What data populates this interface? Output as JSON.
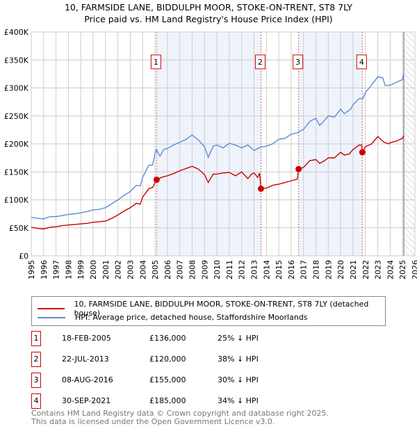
{
  "chart_data": {
    "type": "line",
    "title": "10, FARMSIDE LANE, BIDDULPH MOOR, STOKE-ON-TRENT, ST8 7LY",
    "subtitle": "Price paid vs. HM Land Registry's House Price Index (HPI)",
    "xlim": [
      1995,
      2026
    ],
    "ylim": [
      0,
      400000
    ],
    "x_ticks": [
      "1995",
      "1996",
      "1997",
      "1998",
      "1999",
      "2000",
      "2001",
      "2002",
      "2003",
      "2004",
      "2005",
      "2006",
      "2007",
      "2008",
      "2009",
      "2010",
      "2011",
      "2012",
      "2013",
      "2014",
      "2015",
      "2016",
      "2017",
      "2018",
      "2019",
      "2020",
      "2021",
      "2022",
      "2023",
      "2024",
      "2025",
      "2026"
    ],
    "y_ticks": [
      {
        "v": 0,
        "l": "£0"
      },
      {
        "v": 50000,
        "l": "£50K"
      },
      {
        "v": 100000,
        "l": "£100K"
      },
      {
        "v": 150000,
        "l": "£150K"
      },
      {
        "v": 200000,
        "l": "£200K"
      },
      {
        "v": 250000,
        "l": "£250K"
      },
      {
        "v": 300000,
        "l": "£300K"
      },
      {
        "v": 350000,
        "l": "£350K"
      },
      {
        "v": 400000,
        "l": "£400K"
      }
    ],
    "grid": true,
    "forecast_start": 2025.1,
    "series": [
      {
        "name": "10, FARMSIDE LANE, BIDDULPH MOOR, STOKE-ON-TRENT, ST8 7LY (detached house)",
        "color": "#cc0000",
        "points": [
          [
            1995,
            51
          ],
          [
            1995.5,
            49
          ],
          [
            1996,
            48
          ],
          [
            1996.5,
            51
          ],
          [
            1997,
            52
          ],
          [
            1997.5,
            54
          ],
          [
            1998,
            55
          ],
          [
            1998.5,
            56
          ],
          [
            1999,
            57
          ],
          [
            1999.5,
            58
          ],
          [
            2000,
            60
          ],
          [
            2000.5,
            61
          ],
          [
            2001,
            62
          ],
          [
            2001.5,
            67
          ],
          [
            2002,
            73
          ],
          [
            2002.5,
            80
          ],
          [
            2003,
            86
          ],
          [
            2003.5,
            94
          ],
          [
            2003.8,
            92
          ],
          [
            2004,
            105
          ],
          [
            2004.5,
            120
          ],
          [
            2004.8,
            122
          ],
          [
            2005.13,
            136
          ],
          [
            2005.5,
            140
          ],
          [
            2006,
            143
          ],
          [
            2006.5,
            147
          ],
          [
            2007,
            152
          ],
          [
            2007.5,
            156
          ],
          [
            2008,
            160
          ],
          [
            2008.5,
            155
          ],
          [
            2009,
            145
          ],
          [
            2009.3,
            131
          ],
          [
            2009.7,
            146
          ],
          [
            2010,
            146
          ],
          [
            2010.5,
            148
          ],
          [
            2011,
            149
          ],
          [
            2011.5,
            143
          ],
          [
            2012,
            150
          ],
          [
            2012.5,
            138
          ],
          [
            2012.8,
            146
          ],
          [
            2013,
            148
          ],
          [
            2013.3,
            140
          ],
          [
            2013.45,
            148
          ],
          [
            2013.56,
            120
          ],
          [
            2014,
            121
          ],
          [
            2014.5,
            126
          ],
          [
            2015,
            128
          ],
          [
            2015.5,
            131
          ],
          [
            2016,
            134
          ],
          [
            2016.5,
            137
          ],
          [
            2016.6,
            155
          ],
          [
            2017,
            158
          ],
          [
            2017.5,
            170
          ],
          [
            2018,
            172
          ],
          [
            2018.3,
            165
          ],
          [
            2018.7,
            170
          ],
          [
            2019,
            175
          ],
          [
            2019.5,
            175
          ],
          [
            2020,
            185
          ],
          [
            2020.3,
            180
          ],
          [
            2020.7,
            182
          ],
          [
            2021,
            190
          ],
          [
            2021.5,
            198
          ],
          [
            2021.7,
            198
          ],
          [
            2021.75,
            185
          ],
          [
            2022,
            195
          ],
          [
            2022.5,
            200
          ],
          [
            2023,
            213
          ],
          [
            2023.5,
            203
          ],
          [
            2023.9,
            200
          ],
          [
            2024,
            202
          ],
          [
            2024.5,
            205
          ],
          [
            2025,
            210
          ],
          [
            2025.1,
            215
          ]
        ]
      },
      {
        "name": "HPI: Average price, detached house, Staffordshire Moorlands",
        "color": "#5b8dd0",
        "points": [
          [
            1995,
            69
          ],
          [
            1995.5,
            67
          ],
          [
            1996,
            66
          ],
          [
            1996.5,
            70
          ],
          [
            1997,
            70
          ],
          [
            1997.5,
            72
          ],
          [
            1998,
            74
          ],
          [
            1998.5,
            75
          ],
          [
            1999,
            77
          ],
          [
            1999.5,
            79
          ],
          [
            2000,
            82
          ],
          [
            2000.5,
            83
          ],
          [
            2001,
            86
          ],
          [
            2001.5,
            93
          ],
          [
            2002,
            100
          ],
          [
            2002.5,
            108
          ],
          [
            2003,
            115
          ],
          [
            2003.5,
            126
          ],
          [
            2003.8,
            125
          ],
          [
            2004,
            140
          ],
          [
            2004.5,
            162
          ],
          [
            2004.8,
            162
          ],
          [
            2005,
            182
          ],
          [
            2005.1,
            190
          ],
          [
            2005.4,
            178
          ],
          [
            2005.7,
            190
          ],
          [
            2006,
            192
          ],
          [
            2006.5,
            198
          ],
          [
            2007,
            203
          ],
          [
            2007.5,
            208
          ],
          [
            2008,
            216
          ],
          [
            2008.5,
            207
          ],
          [
            2009,
            195
          ],
          [
            2009.3,
            176
          ],
          [
            2009.7,
            196
          ],
          [
            2010,
            198
          ],
          [
            2010.5,
            193
          ],
          [
            2011,
            201
          ],
          [
            2011.5,
            198
          ],
          [
            2012,
            193
          ],
          [
            2012.5,
            198
          ],
          [
            2013,
            188
          ],
          [
            2013.5,
            194
          ],
          [
            2014,
            196
          ],
          [
            2014.5,
            200
          ],
          [
            2015,
            208
          ],
          [
            2015.5,
            210
          ],
          [
            2016,
            217
          ],
          [
            2016.5,
            220
          ],
          [
            2017,
            226
          ],
          [
            2017.5,
            240
          ],
          [
            2018,
            246
          ],
          [
            2018.3,
            233
          ],
          [
            2018.7,
            242
          ],
          [
            2019,
            250
          ],
          [
            2019.5,
            248
          ],
          [
            2020,
            262
          ],
          [
            2020.3,
            254
          ],
          [
            2020.8,
            262
          ],
          [
            2021,
            270
          ],
          [
            2021.5,
            281
          ],
          [
            2021.8,
            281
          ],
          [
            2022,
            292
          ],
          [
            2022.5,
            305
          ],
          [
            2023,
            320
          ],
          [
            2023.4,
            318
          ],
          [
            2023.6,
            304
          ],
          [
            2024,
            305
          ],
          [
            2024.5,
            310
          ],
          [
            2025,
            315
          ],
          [
            2025.1,
            325
          ]
        ]
      }
    ],
    "sales": [
      {
        "label": "1",
        "date": "18-FEB-2005",
        "x": 2005.13,
        "price": "£136,000",
        "value": 136,
        "hpi": "25% ↓ HPI"
      },
      {
        "label": "2",
        "date": "22-JUL-2013",
        "x": 2013.56,
        "price": "£120,000",
        "value": 120,
        "hpi": "38% ↓ HPI"
      },
      {
        "label": "3",
        "date": "08-AUG-2016",
        "x": 2016.6,
        "price": "£155,000",
        "value": 155,
        "hpi": "30% ↓ HPI"
      },
      {
        "label": "4",
        "date": "30-SEP-2021",
        "x": 2021.75,
        "price": "£185,000",
        "value": 185,
        "hpi": "34% ↓ HPI"
      }
    ]
  },
  "footer": {
    "line1": "Contains HM Land Registry data © Crown copyright and database right 2025.",
    "line2": "This data is licensed under the Open Government Licence v3.0."
  }
}
